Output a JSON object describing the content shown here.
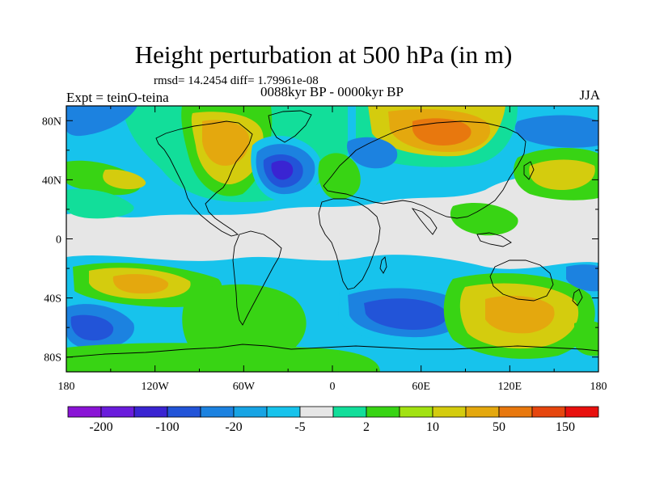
{
  "header": {
    "title": "Height perturbation at 500 hPa (in m)",
    "stats": "rmsd= 14.2454 diff= 1.79961e-08",
    "experiment": "Expt = teinO-teina",
    "period": "0088kyr BP - 0000kyr BP",
    "season": "JJA"
  },
  "axes": {
    "lat_labels": [
      {
        "value": 80,
        "label": "80N"
      },
      {
        "value": 40,
        "label": "40N"
      },
      {
        "value": 0,
        "label": "0"
      },
      {
        "value": -40,
        "label": "40S"
      },
      {
        "value": -80,
        "label": "80S"
      }
    ],
    "lon_labels": [
      {
        "value": -180,
        "label": "180"
      },
      {
        "value": -120,
        "label": "120W"
      },
      {
        "value": -60,
        "label": "60W"
      },
      {
        "value": 0,
        "label": "0"
      },
      {
        "value": 60,
        "label": "60E"
      },
      {
        "value": 120,
        "label": "120E"
      },
      {
        "value": 180,
        "label": "180"
      }
    ]
  },
  "colorbar": {
    "colors": [
      "#8a14d6",
      "#6a1cdc",
      "#3a24d2",
      "#2254d8",
      "#1c82e0",
      "#17a4e4",
      "#17c3ec",
      "#e6e6e6",
      "#12de9a",
      "#38d414",
      "#a2e212",
      "#d4cc0e",
      "#e4a80e",
      "#e8780e",
      "#e6460e",
      "#e8100e"
    ],
    "labels": [
      {
        "after_box": 1,
        "text": "-200"
      },
      {
        "after_box": 3,
        "text": "-100"
      },
      {
        "after_box": 5,
        "text": "-20"
      },
      {
        "after_box": 7,
        "text": "-5"
      },
      {
        "after_box": 9,
        "text": "2"
      },
      {
        "after_box": 11,
        "text": "10"
      },
      {
        "after_box": 13,
        "text": "50"
      },
      {
        "after_box": 15,
        "text": "150"
      }
    ]
  },
  "colors": {
    "background": "#e6e6e6",
    "light_blue": "#17c3ec",
    "blue": "#1c82e0",
    "dark_blue": "#2254d8",
    "deep_blue": "#3a24d2",
    "teal": "#12de9a",
    "green": "#38d414",
    "yellow_green": "#a2e212",
    "yellow": "#d4cc0e",
    "orange": "#e4a80e",
    "dark_orange": "#e8780e",
    "coastline": "#000000"
  }
}
